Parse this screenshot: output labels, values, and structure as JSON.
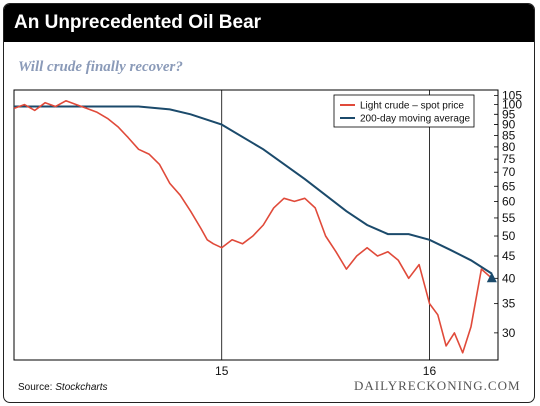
{
  "header": {
    "title": "An Unprecedented Oil Bear",
    "subtitle": "Will crude finally recover?"
  },
  "footer": {
    "source_prefix": "Source: ",
    "source_name": "Stockcharts",
    "brand": "DAILYRECKONING.COM"
  },
  "chart_data": {
    "type": "line",
    "title": "An Unprecedented Oil Bear",
    "subtitle": "Will crude finally recover?",
    "xlabel": "",
    "ylabel": "",
    "scale": "log",
    "x_ticks": [
      "15",
      "16"
    ],
    "x_tick_values": [
      2015.0,
      2016.0
    ],
    "xlim": [
      2014.0,
      2016.33
    ],
    "ylim": [
      26,
      108
    ],
    "y_ticks": [
      30,
      35,
      40,
      45,
      50,
      55,
      60,
      65,
      70,
      75,
      80,
      85,
      90,
      95,
      100,
      105
    ],
    "grid": false,
    "legend": "top-right",
    "colors": {
      "spot": "#e04a3a",
      "ma": "#1b4a6b",
      "marker": "#1b4a6b"
    },
    "series": [
      {
        "name": "Light crude – spot price",
        "x": [
          2014.0,
          2014.05,
          2014.1,
          2014.15,
          2014.2,
          2014.25,
          2014.3,
          2014.35,
          2014.4,
          2014.45,
          2014.5,
          2014.55,
          2014.6,
          2014.65,
          2014.7,
          2014.75,
          2014.8,
          2014.85,
          2014.9,
          2014.93,
          2014.96,
          2015.0,
          2015.05,
          2015.1,
          2015.15,
          2015.2,
          2015.25,
          2015.3,
          2015.35,
          2015.4,
          2015.45,
          2015.5,
          2015.55,
          2015.6,
          2015.65,
          2015.7,
          2015.75,
          2015.8,
          2015.85,
          2015.9,
          2015.95,
          2016.0,
          2016.04,
          2016.08,
          2016.12,
          2016.16,
          2016.2,
          2016.25,
          2016.3
        ],
        "values": [
          98,
          100,
          97,
          101,
          99,
          102,
          100,
          98,
          96,
          93,
          89,
          84,
          79,
          77,
          73,
          66,
          62,
          57,
          52,
          49,
          48,
          47,
          49,
          48,
          50,
          53,
          58,
          61,
          60,
          61,
          58,
          50,
          46,
          42,
          45,
          47,
          45,
          46,
          44,
          40,
          43,
          35,
          33,
          28,
          30,
          27,
          31,
          42,
          40
        ]
      },
      {
        "name": "200-day moving average",
        "x": [
          2014.0,
          2014.3,
          2014.6,
          2014.75,
          2014.85,
          2015.0,
          2015.2,
          2015.4,
          2015.6,
          2015.7,
          2015.8,
          2015.9,
          2016.0,
          2016.1,
          2016.2,
          2016.3
        ],
        "values": [
          99,
          99,
          99,
          97.5,
          95,
          90,
          79,
          67.5,
          57,
          53,
          50.5,
          50.5,
          49,
          46.5,
          44,
          41
        ]
      }
    ],
    "annotations": [
      {
        "type": "marker",
        "shape": "triangle-up",
        "x": 2016.3,
        "y": 40
      }
    ]
  }
}
